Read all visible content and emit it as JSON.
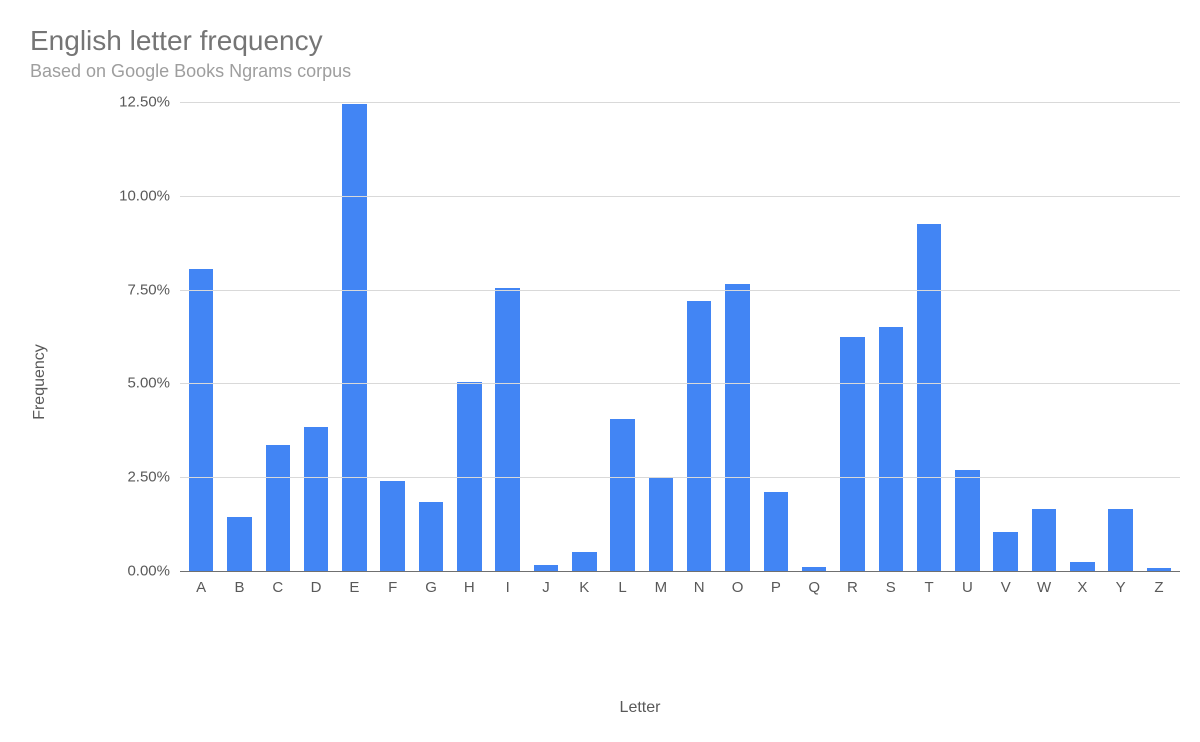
{
  "chart": {
    "type": "bar",
    "title": "English letter frequency",
    "subtitle": "Based on Google Books Ngrams corpus",
    "xlabel": "Letter",
    "ylabel": "Frequency",
    "title_fontsize": 28,
    "subtitle_fontsize": 18,
    "label_fontsize": 16,
    "tick_fontsize": 15,
    "title_color": "#757575",
    "subtitle_color": "#9e9e9e",
    "text_color": "#595959",
    "background_color": "#ffffff",
    "grid_color": "#d9d9d9",
    "axis_color": "#707070",
    "bar_color": "#4285f4",
    "bar_width": 0.64,
    "ylim": [
      0,
      12.5
    ],
    "ytick_step": 2.5,
    "y_ticks": [
      "0.00%",
      "2.50%",
      "5.00%",
      "7.50%",
      "10.00%",
      "12.50%"
    ],
    "categories": [
      "A",
      "B",
      "C",
      "D",
      "E",
      "F",
      "G",
      "H",
      "I",
      "J",
      "K",
      "L",
      "M",
      "N",
      "O",
      "P",
      "Q",
      "R",
      "S",
      "T",
      "U",
      "V",
      "W",
      "X",
      "Y",
      "Z"
    ],
    "values": [
      8.05,
      1.45,
      3.35,
      3.85,
      12.45,
      2.4,
      1.85,
      5.05,
      7.55,
      0.15,
      0.5,
      4.05,
      2.5,
      7.2,
      7.65,
      2.1,
      0.12,
      6.25,
      6.5,
      9.25,
      2.7,
      1.05,
      1.65,
      0.25,
      1.65,
      0.09
    ]
  }
}
